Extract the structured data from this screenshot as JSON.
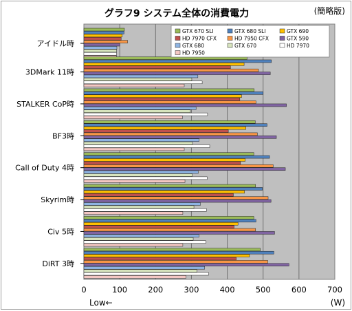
{
  "chart_data": {
    "type": "bar",
    "orientation": "horizontal",
    "title": "グラフ9 システム全体の消費電力",
    "subtitle": "(簡略版)",
    "xlabel": "(W)",
    "x_note": "Low←",
    "xlim": [
      0,
      700
    ],
    "xticks": [
      "0",
      "100",
      "200",
      "300",
      "400",
      "500",
      "600",
      "700"
    ],
    "grid": true,
    "legend_position": "top-right",
    "categories": [
      "アイドル時",
      "3DMark 11時",
      "STALKER CoP時",
      "BF3時",
      "Call of Duty 4時",
      "Skyrim時",
      "Civ 5時",
      "DiRT 3時"
    ],
    "series": [
      {
        "name": "GTX 670 SLI",
        "color": "#9bbb59",
        "values": [
          113,
          455,
          475,
          478,
          474,
          479,
          474,
          492
        ]
      },
      {
        "name": "GTX 680 SLI",
        "color": "#4f81bd",
        "values": [
          112,
          523,
          500,
          511,
          518,
          498,
          480,
          530
        ]
      },
      {
        "name": "GTX 690",
        "color": "#ffc000",
        "values": [
          107,
          447,
          440,
          452,
          450,
          448,
          430,
          462
        ]
      },
      {
        "name": "HD 7970 CFX",
        "color": "#c0504d",
        "values": [
          104,
          409,
          435,
          403,
          437,
          417,
          419,
          425
        ]
      },
      {
        "name": "HD 7950 CFX",
        "color": "#f79646",
        "values": [
          122,
          487,
          480,
          484,
          528,
          514,
          479,
          513
        ]
      },
      {
        "name": "GTX 590",
        "color": "#8064a2",
        "values": [
          100,
          520,
          565,
          537,
          562,
          522,
          532,
          572
        ]
      },
      {
        "name": "GTX 680",
        "color": "#8eb4e3",
        "values": [
          92,
          318,
          313,
          321,
          319,
          325,
          321,
          337
        ]
      },
      {
        "name": "GTX 670",
        "color": "#d7e4bd",
        "values": [
          91,
          301,
          297,
          303,
          302,
          307,
          305,
          315
        ]
      },
      {
        "name": "HD 7970",
        "color": "#ffffff",
        "values": [
          91,
          330,
          345,
          351,
          344,
          342,
          340,
          348
        ]
      },
      {
        "name": "HD 7950",
        "color": "#f4c7c3",
        "values": [
          91,
          280,
          275,
          280,
          282,
          276,
          276,
          285
        ]
      }
    ]
  }
}
